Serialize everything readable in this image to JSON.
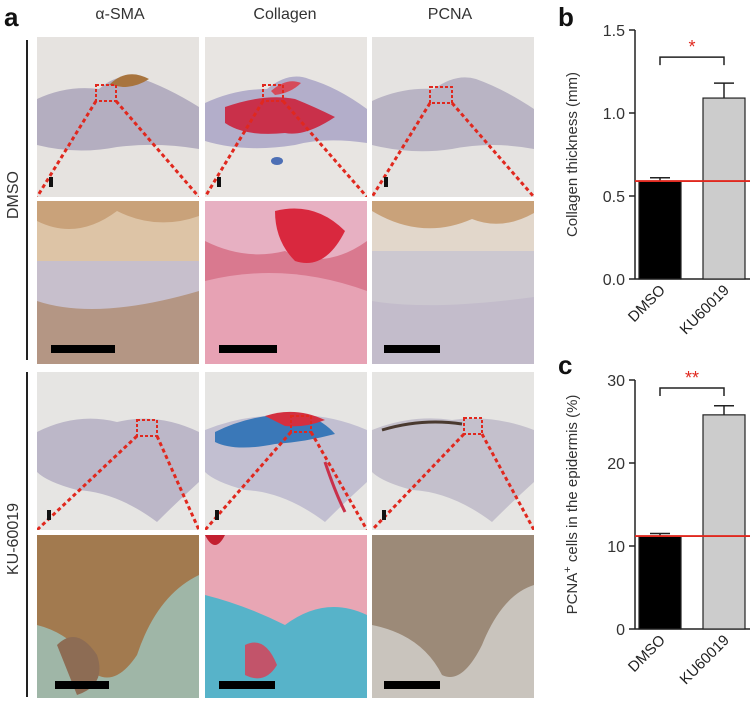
{
  "panel_a": {
    "letter": "a",
    "columns": [
      "α-SMA",
      "Collagen",
      "PCNA"
    ],
    "rows": [
      "DMSO",
      "KU-60019"
    ]
  },
  "colors": {
    "red_dotted": "#e0281e",
    "black_bar": "#000000",
    "grey_bar": "#cccccc",
    "reference_line": "#e0281e",
    "significance": "#e0281e"
  },
  "chart_data": [
    {
      "panel": "b",
      "type": "bar",
      "categories": [
        "DMSO",
        "KU60019"
      ],
      "values": [
        0.59,
        1.09
      ],
      "errors": [
        0.02,
        0.09
      ],
      "bar_colors": [
        "#000000",
        "#cccccc"
      ],
      "ylabel": "Collagen thickness (mm)",
      "ylim": [
        0,
        1.5
      ],
      "yticks": [
        "0.0",
        "0.5",
        "1.0",
        "1.5"
      ],
      "reference_line": 0.59,
      "significance": "*"
    },
    {
      "panel": "c",
      "type": "bar",
      "categories": [
        "DMSO",
        "KU60019"
      ],
      "values": [
        11.2,
        25.8
      ],
      "errors": [
        0.3,
        1.1
      ],
      "bar_colors": [
        "#000000",
        "#cccccc"
      ],
      "ylabel_pre": "PCNA",
      "ylabel_sup": "+",
      "ylabel_post": " cells in the epidermis (%)",
      "ylim": [
        0,
        30
      ],
      "yticks": [
        "0",
        "10",
        "20",
        "30"
      ],
      "reference_line": 11.2,
      "significance": "**"
    }
  ]
}
